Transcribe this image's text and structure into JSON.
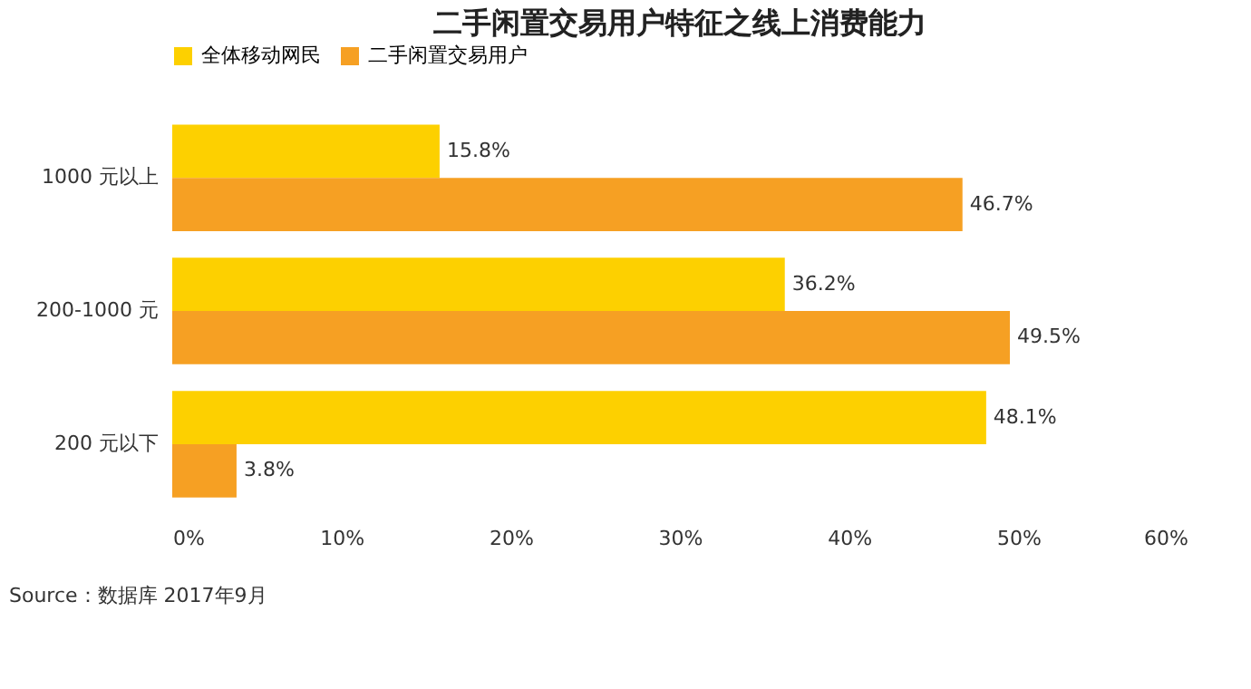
{
  "chart_data": {
    "type": "bar",
    "orientation": "horizontal",
    "title": "二手闲置交易用户特征之线上消费能力",
    "categories": [
      "1000 元以上",
      "200-1000 元",
      "200 元以下"
    ],
    "series": [
      {
        "name": "全体移动网民",
        "color": "#fdd000",
        "values": [
          15.8,
          36.2,
          48.1
        ],
        "value_labels": [
          "15.8%",
          "36.2%",
          "48.1%"
        ]
      },
      {
        "name": "二手闲置交易用户",
        "color": "#f6a023",
        "values": [
          46.7,
          49.5,
          3.8
        ],
        "value_labels": [
          "46.7%",
          "49.5%",
          "3.8%"
        ]
      }
    ],
    "xlim": [
      0,
      60
    ],
    "xticks": [
      {
        "value": 0,
        "label": "0%"
      },
      {
        "value": 10,
        "label": "10%"
      },
      {
        "value": 20,
        "label": "20%"
      },
      {
        "value": 30,
        "label": "30%"
      },
      {
        "value": 40,
        "label": "40%"
      },
      {
        "value": 50,
        "label": "50%"
      },
      {
        "value": 60,
        "label": "60%"
      }
    ],
    "grid": false,
    "legend": "top",
    "annotations": [
      "Source：数据库 2017年9月"
    ]
  }
}
